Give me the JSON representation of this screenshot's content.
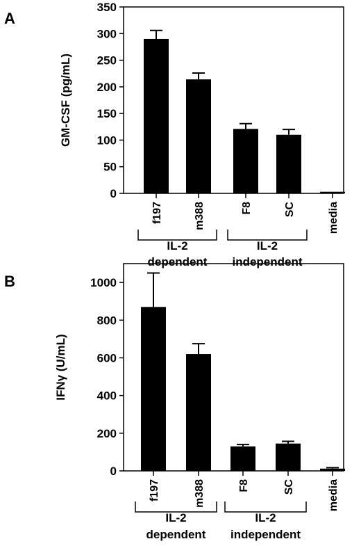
{
  "chart_data": [
    {
      "panel": "A",
      "type": "bar",
      "ylabel": "GM-CSF (pg/mL)",
      "ylim": [
        0,
        350
      ],
      "yticks": [
        0,
        50,
        100,
        150,
        200,
        250,
        300,
        350
      ],
      "categories": [
        "f197",
        "m388",
        "F8",
        "SC",
        "media"
      ],
      "values": [
        290,
        214,
        121,
        110,
        3
      ],
      "errors": [
        16,
        12,
        10,
        10,
        0
      ],
      "groups": [
        {
          "line1": "IL-2",
          "line2": "dependent",
          "span": [
            0,
            1
          ]
        },
        {
          "line1": "IL-2",
          "line2": "independent",
          "span": [
            2,
            3
          ]
        }
      ]
    },
    {
      "panel": "B",
      "type": "bar",
      "ylabel": "IFNγ (U/mL)",
      "ylim": [
        0,
        1100
      ],
      "yticks": [
        0,
        200,
        400,
        600,
        800,
        1000
      ],
      "categories": [
        "f197",
        "m388",
        "F8",
        "SC",
        "media"
      ],
      "values": [
        870,
        620,
        130,
        145,
        12
      ],
      "errors": [
        180,
        55,
        10,
        12,
        5
      ],
      "groups": [
        {
          "line1": "IL-2",
          "line2": "dependent",
          "span": [
            0,
            1
          ]
        },
        {
          "line1": "IL-2",
          "line2": "independent",
          "span": [
            2,
            3
          ]
        }
      ]
    }
  ]
}
